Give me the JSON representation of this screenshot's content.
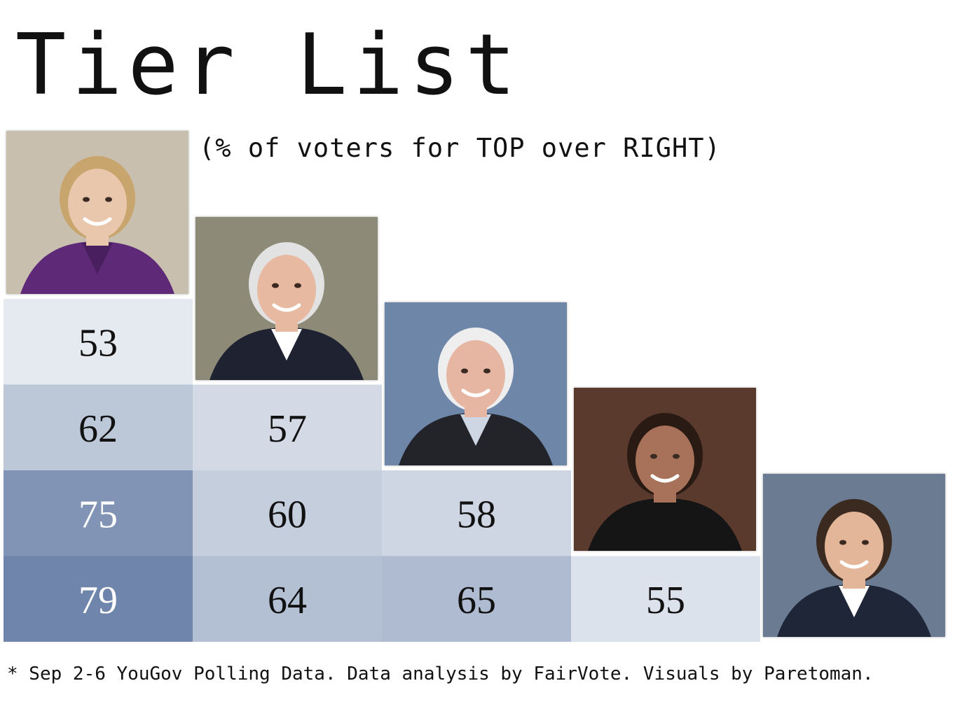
{
  "title": "Tier List",
  "subtitle": "(% of voters for TOP over RIGHT)",
  "footnote": "* Sep 2-6 YouGov Polling Data. Data analysis by FairVote. Visuals by Paretoman.",
  "colors": {
    "background": "#ffffff",
    "low": "#f3f5f8",
    "high": "#6a81a8"
  },
  "portraits": [
    {
      "icon": "portrait-woman-purple-jacket",
      "bg": "#c9bfae",
      "skin": "#e9c7ad",
      "hair": "#c8a56d",
      "suit": "#5e2a78",
      "shirt": "#4a1f60"
    },
    {
      "icon": "portrait-man-white-hair-blue-tie",
      "bg": "#8e8a78",
      "skin": "#e6b9a0",
      "hair": "#e2e2e2",
      "suit": "#1f2230",
      "shirt": "#ffffff"
    },
    {
      "icon": "portrait-man-glasses-white-hair",
      "bg": "#6e87a9",
      "skin": "#e6b6a2",
      "hair": "#eeeeee",
      "suit": "#22242a",
      "shirt": "#cfd6e3"
    },
    {
      "icon": "portrait-woman-dark-hair-flags",
      "bg": "#5b3a2e",
      "skin": "#a8725a",
      "hair": "#2a1a14",
      "suit": "#151515",
      "shirt": "#151515"
    },
    {
      "icon": "portrait-man-dark-hair-flags",
      "bg": "#6b7c92",
      "skin": "#e3b69a",
      "hair": "#3a2a20",
      "suit": "#1e2638",
      "shirt": "#ffffff"
    }
  ],
  "chart_data": {
    "type": "heatmap",
    "title": "Tier List",
    "subtitle": "(% of voters for TOP over RIGHT)",
    "rows": 4,
    "cols": 4,
    "cells": [
      {
        "row": 0,
        "col": 0,
        "value": 53
      },
      {
        "row": 1,
        "col": 0,
        "value": 62
      },
      {
        "row": 1,
        "col": 1,
        "value": 57
      },
      {
        "row": 2,
        "col": 0,
        "value": 75
      },
      {
        "row": 2,
        "col": 1,
        "value": 60
      },
      {
        "row": 2,
        "col": 2,
        "value": 58
      },
      {
        "row": 3,
        "col": 0,
        "value": 79
      },
      {
        "row": 3,
        "col": 1,
        "value": 64
      },
      {
        "row": 3,
        "col": 2,
        "value": 65
      },
      {
        "row": 3,
        "col": 3,
        "value": 55
      }
    ],
    "color_scale": {
      "min": 50,
      "max": 80
    }
  }
}
